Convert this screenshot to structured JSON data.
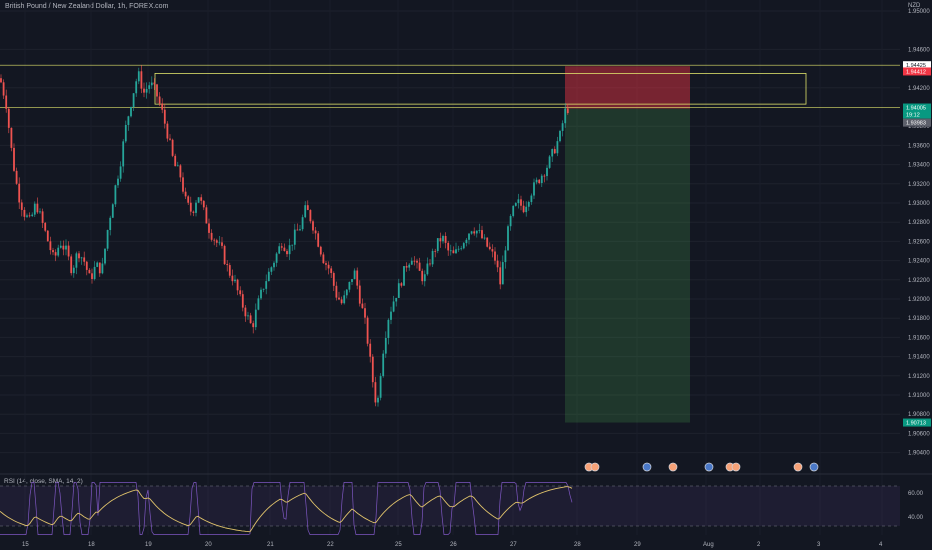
{
  "header": {
    "title": "British Pound / New Zealand Dollar, 1h, FOREX.com",
    "currency": "NZD"
  },
  "rsi": {
    "label": "RSI (14, close, SMA, 14, 2)",
    "levels": [
      "60.00",
      "40.00"
    ]
  },
  "chart_data": {
    "type": "candlestick",
    "title": "British Pound / New Zealand Dollar, 1h, FOREX.com",
    "y_ticks": [
      "1.95000",
      "1.94600",
      "1.94200",
      "1.93800",
      "1.93600",
      "1.93400",
      "1.93200",
      "1.93000",
      "1.92800",
      "1.92600",
      "1.92400",
      "1.92200",
      "1.92000",
      "1.91800",
      "1.91600",
      "1.91400",
      "1.91200",
      "1.91000",
      "1.90800",
      "1.90600",
      "1.90400"
    ],
    "x_ticks": [
      "15",
      "18",
      "19",
      "20",
      "21",
      "22",
      "25",
      "26",
      "27",
      "28",
      "29",
      "Aug",
      "2",
      "3",
      "4"
    ],
    "price_tags": [
      {
        "text": "1.94425",
        "style": "white"
      },
      {
        "text": "1.94412",
        "style": "red"
      },
      {
        "text": "1.94005",
        "style": "green"
      },
      {
        "text": "19:12",
        "style": "green"
      },
      {
        "text": "1.93983",
        "style": "gray"
      },
      {
        "text": "1.90713",
        "style": "green"
      }
    ],
    "zones": {
      "supply_zone": [
        1.9403,
        1.9435
      ],
      "short_position": {
        "entry": 1.93983,
        "stop": 1.94425,
        "target": 1.90713
      }
    },
    "rsi_levels": [
      60,
      40
    ],
    "trend_path": [
      [
        0,
        1.943
      ],
      [
        6,
        1.9405
      ],
      [
        12,
        1.935
      ],
      [
        18,
        1.931
      ],
      [
        24,
        1.929
      ],
      [
        30,
        1.928
      ],
      [
        36,
        1.93
      ],
      [
        42,
        1.928
      ],
      [
        48,
        1.926
      ],
      [
        54,
        1.924
      ],
      [
        60,
        1.926
      ],
      [
        66,
        1.925
      ],
      [
        72,
        1.923
      ],
      [
        78,
        1.925
      ],
      [
        84,
        1.924
      ],
      [
        90,
        1.922
      ],
      [
        96,
        1.9235
      ],
      [
        102,
        1.923
      ],
      [
        108,
        1.9275
      ],
      [
        114,
        1.931
      ],
      [
        120,
        1.934
      ],
      [
        126,
        1.938
      ],
      [
        132,
        1.941
      ],
      [
        138,
        1.9435
      ],
      [
        144,
        1.9415
      ],
      [
        150,
        1.9425
      ],
      [
        156,
        1.9415
      ],
      [
        162,
        1.9395
      ],
      [
        168,
        1.937
      ],
      [
        174,
        1.934
      ],
      [
        180,
        1.933
      ],
      [
        186,
        1.93
      ],
      [
        192,
        1.929
      ],
      [
        198,
        1.931
      ],
      [
        204,
        1.929
      ],
      [
        210,
        1.927
      ],
      [
        216,
        1.926
      ],
      [
        222,
        1.925
      ],
      [
        228,
        1.923
      ],
      [
        234,
        1.922
      ],
      [
        240,
        1.92
      ],
      [
        246,
        1.9185
      ],
      [
        252,
        1.917
      ],
      [
        258,
        1.9195
      ],
      [
        264,
        1.9215
      ],
      [
        270,
        1.923
      ],
      [
        276,
        1.9245
      ],
      [
        282,
        1.926
      ],
      [
        288,
        1.925
      ],
      [
        294,
        1.9265
      ],
      [
        300,
        1.9275
      ],
      [
        306,
        1.9295
      ],
      [
        312,
        1.928
      ],
      [
        318,
        1.926
      ],
      [
        324,
        1.924
      ],
      [
        330,
        1.923
      ],
      [
        336,
        1.9205
      ],
      [
        342,
        1.9195
      ],
      [
        348,
        1.921
      ],
      [
        354,
        1.923
      ],
      [
        360,
        1.92
      ],
      [
        366,
        1.917
      ],
      [
        372,
        1.912
      ],
      [
        377,
        1.9085
      ],
      [
        382,
        1.914
      ],
      [
        388,
        1.918
      ],
      [
        394,
        1.92
      ],
      [
        400,
        1.9215
      ],
      [
        406,
        1.9235
      ],
      [
        412,
        1.9245
      ],
      [
        418,
        1.923
      ],
      [
        424,
        1.922
      ],
      [
        430,
        1.924
      ],
      [
        436,
        1.9255
      ],
      [
        442,
        1.9265
      ],
      [
        448,
        1.925
      ],
      [
        454,
        1.9245
      ],
      [
        460,
        1.9255
      ],
      [
        466,
        1.9265
      ],
      [
        472,
        1.9275
      ],
      [
        478,
        1.927
      ],
      [
        484,
        1.926
      ],
      [
        490,
        1.925
      ],
      [
        496,
        1.924
      ],
      [
        500,
        1.9215
      ],
      [
        506,
        1.926
      ],
      [
        512,
        1.929
      ],
      [
        518,
        1.93
      ],
      [
        524,
        1.9295
      ],
      [
        530,
        1.931
      ],
      [
        536,
        1.932
      ],
      [
        542,
        1.933
      ],
      [
        548,
        1.934
      ],
      [
        554,
        1.9355
      ],
      [
        560,
        1.937
      ],
      [
        565,
        1.9395
      ],
      [
        569,
        1.94
      ]
    ],
    "xlim_px": [
      0,
      900
    ]
  }
}
